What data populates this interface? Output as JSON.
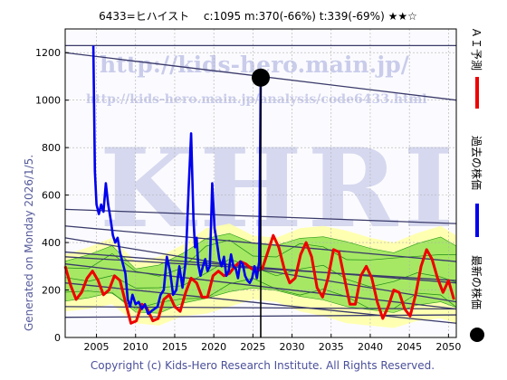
{
  "chart_data": {
    "type": "line",
    "title": "6433=ヒハイスト　 c:1095  m:370(-66%)  t:339(-69%)  ★★☆",
    "xlim": [
      2001,
      2051
    ],
    "ylim": [
      0,
      1300
    ],
    "x_ticks": [
      2005,
      2010,
      2015,
      2020,
      2025,
      2030,
      2035,
      2040,
      2045,
      2050
    ],
    "y_ticks": [
      0,
      200,
      400,
      600,
      800,
      1000,
      1200
    ],
    "grid": true,
    "series": [
      {
        "name": "過去の株価",
        "color": "#0000ee",
        "x": [
          2004.6,
          2004.8,
          2005.0,
          2005.3,
          2005.6,
          2005.9,
          2006.2,
          2006.5,
          2006.8,
          2007.1,
          2007.4,
          2007.7,
          2008.0,
          2008.3,
          2008.7,
          2009.0,
          2009.3,
          2009.6,
          2010.0,
          2010.4,
          2010.8,
          2011.2,
          2011.6,
          2012.0,
          2012.4,
          2012.8,
          2013.2,
          2013.6,
          2014.0,
          2014.4,
          2014.8,
          2015.2,
          2015.6,
          2016.0,
          2016.4,
          2016.8,
          2017.1,
          2017.4,
          2017.6,
          2017.8,
          2018.0,
          2018.3,
          2018.6,
          2018.9,
          2019.2,
          2019.5,
          2019.8,
          2020.1,
          2020.4,
          2020.7,
          2021.0,
          2021.3,
          2021.6,
          2021.9,
          2022.2,
          2022.5,
          2022.8,
          2023.1,
          2023.4,
          2023.7,
          2024.0,
          2024.3,
          2024.6,
          2024.9,
          2025.2,
          2025.5,
          2025.8,
          2026.0
        ],
        "y": [
          1230,
          700,
          560,
          520,
          560,
          530,
          650,
          560,
          500,
          430,
          400,
          420,
          360,
          320,
          270,
          160,
          130,
          180,
          140,
          150,
          120,
          140,
          100,
          110,
          120,
          130,
          180,
          200,
          340,
          280,
          180,
          200,
          300,
          210,
          320,
          640,
          860,
          500,
          380,
          420,
          310,
          260,
          300,
          330,
          280,
          300,
          650,
          460,
          400,
          330,
          300,
          340,
          260,
          280,
          350,
          300,
          290,
          250,
          320,
          310,
          260,
          240,
          230,
          250,
          300,
          250,
          320,
          1095
        ]
      },
      {
        "name": "ＡＩ予測",
        "color": "#ee0000",
        "x": [
          2001.0,
          2001.7,
          2002.4,
          2003.1,
          2003.8,
          2004.5,
          2005.2,
          2005.9,
          2006.6,
          2007.3,
          2008.0,
          2008.7,
          2009.4,
          2010.1,
          2010.8,
          2011.5,
          2012.2,
          2012.9,
          2013.6,
          2014.3,
          2015.0,
          2015.7,
          2016.4,
          2017.1,
          2017.8,
          2018.5,
          2019.2,
          2019.9,
          2020.6,
          2021.3,
          2022.0,
          2022.7,
          2023.4,
          2024.1,
          2024.8,
          2025.5,
          2026.2,
          2026.9,
          2027.6,
          2028.3,
          2029.0,
          2029.7,
          2030.4,
          2031.1,
          2031.8,
          2032.5,
          2033.2,
          2033.9,
          2034.6,
          2035.3,
          2036.0,
          2036.7,
          2037.4,
          2038.1,
          2038.8,
          2039.5,
          2040.2,
          2040.9,
          2041.6,
          2042.3,
          2043.0,
          2043.7,
          2044.4,
          2045.1,
          2045.8,
          2046.5,
          2047.2,
          2047.9,
          2048.6,
          2049.3,
          2050.0,
          2050.7
        ],
        "y": [
          300,
          220,
          160,
          190,
          250,
          280,
          240,
          180,
          200,
          260,
          240,
          150,
          60,
          70,
          140,
          120,
          70,
          80,
          160,
          180,
          130,
          110,
          190,
          250,
          230,
          170,
          170,
          260,
          280,
          260,
          270,
          300,
          320,
          310,
          290,
          280,
          290,
          360,
          430,
          380,
          290,
          230,
          250,
          350,
          400,
          340,
          210,
          170,
          250,
          370,
          360,
          250,
          140,
          140,
          260,
          300,
          250,
          150,
          80,
          130,
          200,
          190,
          120,
          90,
          180,
          300,
          370,
          330,
          250,
          190,
          240,
          160
        ]
      },
      {
        "name": "最新の株価",
        "x": [
          2026.0
        ],
        "y": [
          1095
        ]
      }
    ],
    "trend_lines": [
      {
        "x": [
          2001,
          2051
        ],
        "y": [
          1230,
          1230
        ]
      },
      {
        "x": [
          2001,
          2051
        ],
        "y": [
          1200,
          1000
        ]
      },
      {
        "x": [
          2001,
          2051
        ],
        "y": [
          540,
          480
        ]
      },
      {
        "x": [
          2001,
          2051
        ],
        "y": [
          470,
          320
        ]
      },
      {
        "x": [
          2001,
          2051
        ],
        "y": [
          420,
          150
        ]
      },
      {
        "x": [
          2001,
          2051
        ],
        "y": [
          360,
          230
        ]
      },
      {
        "x": [
          2001,
          2051
        ],
        "y": [
          340,
          240
        ]
      },
      {
        "x": [
          2001,
          2051
        ],
        "y": [
          310,
          120
        ]
      },
      {
        "x": [
          2001,
          2051
        ],
        "y": [
          230,
          60
        ]
      },
      {
        "x": [
          2001,
          2051
        ],
        "y": [
          130,
          120
        ]
      },
      {
        "x": [
          2001,
          2051
        ],
        "y": [
          85,
          95
        ]
      }
    ],
    "band": {
      "x": [
        2001.0,
        2004.0,
        2007.0,
        2010.0,
        2013.0,
        2016.0,
        2019.0,
        2022.0,
        2025.0,
        2028.0,
        2031.0,
        2034.0,
        2037.0,
        2040.0,
        2043.0,
        2046.0,
        2049.0,
        2051.0
      ],
      "upper": [
        350,
        380,
        420,
        320,
        340,
        390,
        460,
        480,
        430,
        420,
        460,
        470,
        450,
        420,
        400,
        440,
        470,
        430
      ],
      "lower": [
        110,
        120,
        140,
        60,
        50,
        90,
        100,
        130,
        160,
        150,
        110,
        90,
        60,
        50,
        40,
        70,
        80,
        60
      ]
    },
    "vertical_marker_x": 2026.0,
    "legend": {
      "position": "right",
      "items": [
        "ＡＩ予測",
        "過去の株価",
        "最新の株価"
      ]
    },
    "side_label": "Generated on Monday 2026/1/5.",
    "footer": "Copyright (c) Kids-Hero Research Institute. All Rights Reserved.",
    "watermark_url": "http://kids-hero.main.jp/",
    "watermark_url2": "http://kids-hero.main.jp/analysis/code6433.html",
    "watermark_big": "KHRI"
  }
}
